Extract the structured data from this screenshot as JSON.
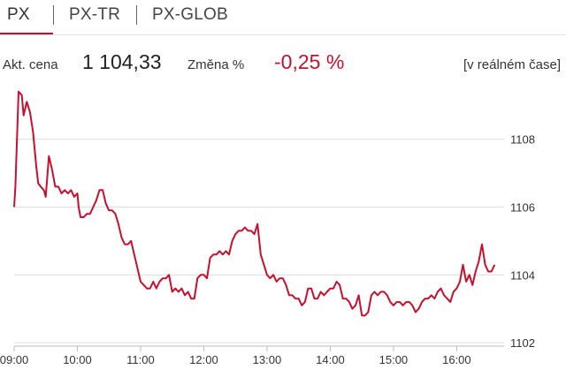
{
  "tabs": [
    {
      "label": "PX",
      "active": true
    },
    {
      "label": "PX-TR",
      "active": false
    },
    {
      "label": "PX-GLOB",
      "active": false
    }
  ],
  "quote": {
    "price_label": "Akt. cena",
    "price": "1 104,33",
    "change_label": "Změna %",
    "change": "-0,25 %",
    "realtime": "[v reálném čase]"
  },
  "colors": {
    "accent": "#c8102e",
    "grid": "#dddddd"
  },
  "chart_data": {
    "type": "line",
    "x_unit": "hours",
    "x_ticks": [
      "09:00",
      "10:00",
      "11:00",
      "12:00",
      "13:00",
      "14:00",
      "15:00",
      "16:00"
    ],
    "y_ticks": [
      "1108",
      "1106",
      "1104",
      "1102"
    ],
    "xlim": [
      9.0,
      16.75
    ],
    "ylim": [
      1101.9,
      1109.5
    ],
    "grid": true,
    "series": [
      {
        "x": [
          9.0,
          9.02,
          9.07,
          9.12,
          9.15,
          9.2,
          9.25,
          9.3,
          9.35,
          9.38,
          9.42,
          9.47,
          9.5,
          9.55,
          9.6,
          9.62,
          9.65,
          9.7,
          9.75,
          9.8,
          9.85,
          9.9,
          9.95,
          10.0,
          10.02,
          10.05,
          10.1,
          10.15,
          10.2,
          10.25,
          10.3,
          10.35,
          10.4,
          10.45,
          10.5,
          10.55,
          10.6,
          10.65,
          10.7,
          10.75,
          10.8,
          10.85,
          10.9,
          10.95,
          11.0,
          11.05,
          11.1,
          11.15,
          11.2,
          11.25,
          11.3,
          11.35,
          11.4,
          11.45,
          11.5,
          11.55,
          11.6,
          11.65,
          11.7,
          11.75,
          11.8,
          11.85,
          11.9,
          11.95,
          12.0,
          12.05,
          12.1,
          12.15,
          12.2,
          12.25,
          12.3,
          12.35,
          12.4,
          12.45,
          12.5,
          12.55,
          12.6,
          12.65,
          12.7,
          12.75,
          12.8,
          12.85,
          12.9,
          12.95,
          13.0,
          13.05,
          13.1,
          13.15,
          13.2,
          13.25,
          13.3,
          13.35,
          13.4,
          13.45,
          13.5,
          13.55,
          13.6,
          13.65,
          13.7,
          13.75,
          13.8,
          13.85,
          13.9,
          13.95,
          14.0,
          14.05,
          14.1,
          14.15,
          14.2,
          14.25,
          14.3,
          14.35,
          14.4,
          14.45,
          14.5,
          14.55,
          14.6,
          14.65,
          14.7,
          14.75,
          14.8,
          14.85,
          14.9,
          14.95,
          15.0,
          15.05,
          15.1,
          15.15,
          15.2,
          15.25,
          15.3,
          15.35,
          15.4,
          15.45,
          15.5,
          15.55,
          15.6,
          15.65,
          15.7,
          15.75,
          15.8,
          15.85,
          15.9,
          15.95,
          16.0,
          16.05,
          16.1,
          16.15,
          16.2,
          16.25,
          16.3,
          16.35,
          16.4,
          16.45,
          16.5,
          16.55,
          16.6
        ],
        "y": [
          1106.0,
          1106.6,
          1109.4,
          1109.3,
          1108.7,
          1109.1,
          1108.8,
          1108.2,
          1107.2,
          1106.7,
          1106.6,
          1106.5,
          1106.3,
          1107.5,
          1107.1,
          1106.9,
          1106.6,
          1106.6,
          1106.4,
          1106.5,
          1106.4,
          1106.5,
          1106.3,
          1106.4,
          1106.0,
          1105.7,
          1105.7,
          1105.8,
          1105.8,
          1106.0,
          1106.2,
          1106.5,
          1106.5,
          1106.1,
          1105.9,
          1105.9,
          1105.8,
          1105.5,
          1105.1,
          1104.9,
          1104.9,
          1105.0,
          1104.6,
          1104.2,
          1103.8,
          1103.7,
          1103.6,
          1103.6,
          1103.8,
          1103.6,
          1103.8,
          1103.9,
          1103.9,
          1104.0,
          1103.5,
          1103.6,
          1103.5,
          1103.6,
          1103.4,
          1103.5,
          1103.3,
          1103.3,
          1103.9,
          1104.0,
          1104.0,
          1103.9,
          1104.5,
          1104.6,
          1104.6,
          1104.7,
          1104.6,
          1104.7,
          1104.6,
          1105.0,
          1105.2,
          1105.3,
          1105.3,
          1105.4,
          1105.3,
          1105.3,
          1105.2,
          1105.5,
          1104.6,
          1104.3,
          1104.0,
          1103.9,
          1104.0,
          1103.8,
          1103.9,
          1103.9,
          1103.7,
          1103.4,
          1103.4,
          1103.3,
          1103.3,
          1103.1,
          1103.2,
          1103.6,
          1103.6,
          1103.3,
          1103.3,
          1103.5,
          1103.4,
          1103.5,
          1103.6,
          1103.6,
          1103.8,
          1103.7,
          1103.3,
          1103.3,
          1103.2,
          1103.0,
          1103.1,
          1103.4,
          1102.8,
          1102.8,
          1102.9,
          1103.4,
          1103.5,
          1103.4,
          1103.5,
          1103.5,
          1103.4,
          1103.2,
          1103.1,
          1103.2,
          1103.2,
          1103.1,
          1103.2,
          1103.2,
          1103.1,
          1102.9,
          1103.0,
          1103.2,
          1103.3,
          1103.3,
          1103.4,
          1103.3,
          1103.5,
          1103.6,
          1103.4,
          1103.3,
          1103.2,
          1103.5,
          1103.6,
          1103.8,
          1104.3,
          1103.8,
          1104.0,
          1103.7,
          1104.1,
          1104.4,
          1104.9,
          1104.3,
          1104.1,
          1104.1,
          1104.3
        ]
      }
    ]
  }
}
